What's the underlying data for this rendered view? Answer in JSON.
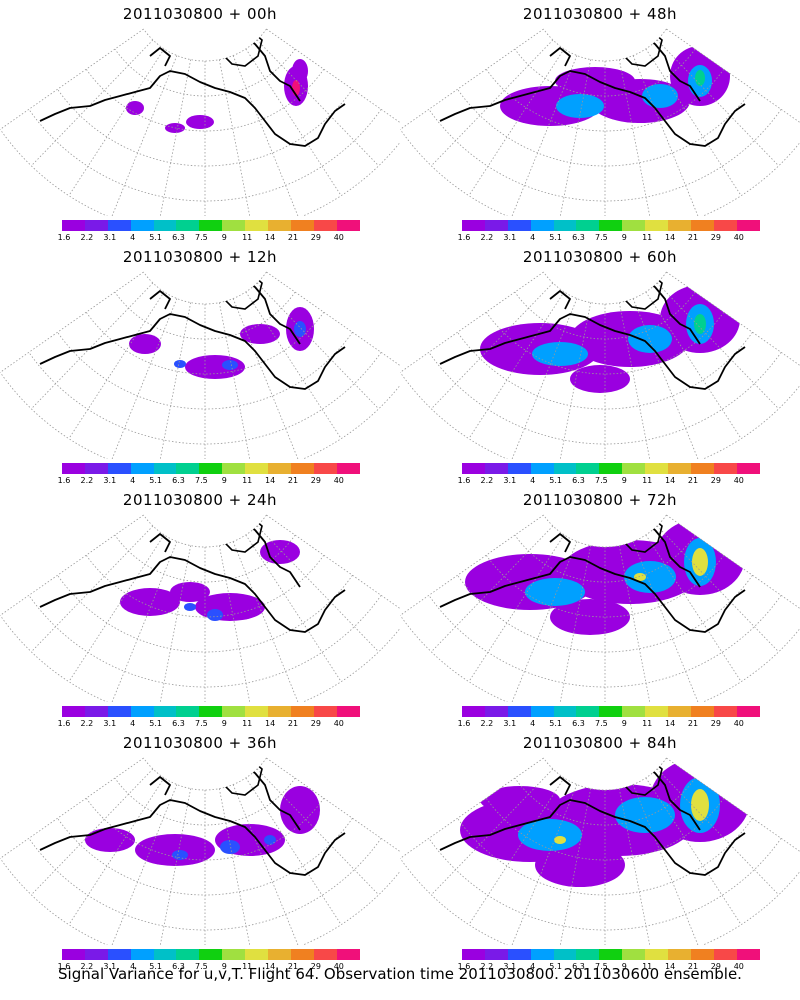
{
  "panels": [
    {
      "title": "2011030800 + 00h",
      "intensity": 0
    },
    {
      "title": "2011030800 + 48h",
      "intensity": 4
    },
    {
      "title": "2011030800 + 12h",
      "intensity": 1
    },
    {
      "title": "2011030800 + 60h",
      "intensity": 5
    },
    {
      "title": "2011030800 + 24h",
      "intensity": 2
    },
    {
      "title": "2011030800 + 72h",
      "intensity": 6
    },
    {
      "title": "2011030800 + 36h",
      "intensity": 3
    },
    {
      "title": "2011030800 + 84h",
      "intensity": 7
    }
  ],
  "colorbar": {
    "labels": [
      "1.6",
      "2.2",
      "3.1",
      "4",
      "5.1",
      "6.3",
      "7.5",
      "9",
      "11",
      "14",
      "21",
      "29",
      "40"
    ],
    "colors": [
      "#9a00e0",
      "#7a1ae8",
      "#2a50ff",
      "#00a0ff",
      "#00c0c8",
      "#00d090",
      "#10d010",
      "#a0e040",
      "#e0e040",
      "#e8b030",
      "#f08020",
      "#f84848",
      "#f0107a"
    ]
  },
  "footer": "Signal Variance for u,v,T. Flight 64. Observation time 2011030800. 2011030600 ensemble."
}
